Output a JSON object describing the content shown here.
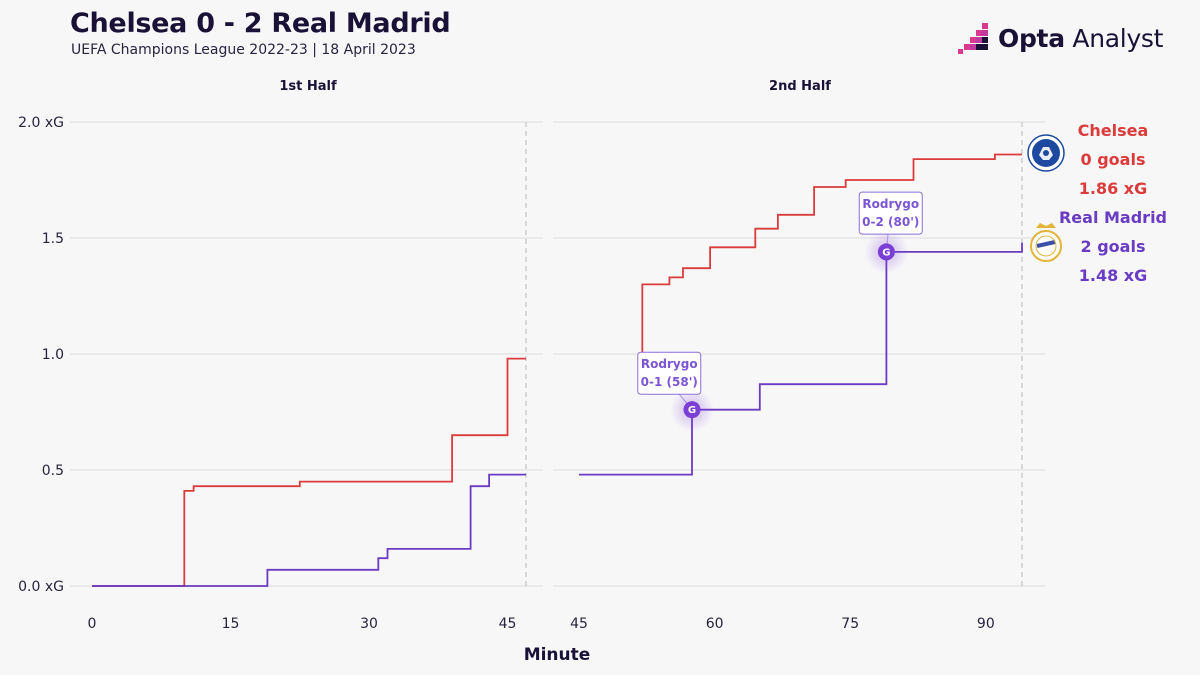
{
  "header": {
    "title": "Chelsea 0 - 2 Real Madrid",
    "subtitle": "UEFA Champions League 2022-23 | 18 April 2023",
    "brand_bold": "Opta",
    "brand_light": " Analyst"
  },
  "colors": {
    "chelsea": "#dc3b3b",
    "real_madrid": "#6a3bc3",
    "grid": "#dcdce0",
    "goal_marker": "#7b3fd6"
  },
  "teams": [
    {
      "name": "Chelsea",
      "goals": "0 goals",
      "xg": "1.86 xG",
      "color": "#dc3b3b",
      "badge": "chelsea-badge-icon"
    },
    {
      "name": "Real Madrid",
      "goals": "2 goals",
      "xg": "1.48 xG",
      "color": "#6a3bc3",
      "badge": "real-madrid-badge-icon"
    }
  ],
  "chart_data": {
    "type": "line",
    "step": true,
    "xlabel": "Minute",
    "ylabel": "",
    "ylim": [
      0,
      2.0
    ],
    "yticks": [
      {
        "v": 0,
        "label": "0.0 xG"
      },
      {
        "v": 0.5,
        "label": "0.5"
      },
      {
        "v": 1.0,
        "label": "1.0"
      },
      {
        "v": 1.5,
        "label": "1.5"
      },
      {
        "v": 2.0,
        "label": "2.0 xG"
      }
    ],
    "panels": [
      {
        "title": "1st Half",
        "xlim": [
          0,
          47
        ],
        "xticks": [
          0,
          15,
          30,
          45
        ],
        "end_marker": 47,
        "series": [
          {
            "name": "Chelsea",
            "color": "#dc3b3b",
            "points": [
              [
                0,
                0
              ],
              [
                10,
                0
              ],
              [
                10,
                0.41
              ],
              [
                11,
                0.41
              ],
              [
                11,
                0.43
              ],
              [
                22.5,
                0.43
              ],
              [
                22.5,
                0.45
              ],
              [
                39,
                0.45
              ],
              [
                39,
                0.65
              ],
              [
                45,
                0.65
              ],
              [
                45,
                0.98
              ],
              [
                47,
                0.98
              ]
            ]
          },
          {
            "name": "Real Madrid",
            "color": "#6a3bc3",
            "points": [
              [
                0,
                0
              ],
              [
                19,
                0
              ],
              [
                19,
                0.07
              ],
              [
                31,
                0.07
              ],
              [
                31,
                0.12
              ],
              [
                32,
                0.12
              ],
              [
                32,
                0.16
              ],
              [
                41,
                0.16
              ],
              [
                41,
                0.43
              ],
              [
                43,
                0.43
              ],
              [
                43,
                0.48
              ],
              [
                47,
                0.48
              ]
            ]
          }
        ]
      },
      {
        "title": "2nd Half",
        "xlim": [
          45,
          94
        ],
        "xticks": [
          45,
          60,
          75,
          90
        ],
        "end_marker": 94,
        "series": [
          {
            "name": "Chelsea",
            "color": "#dc3b3b",
            "points": [
              [
                52,
                0.98
              ],
              [
                52,
                1.3
              ],
              [
                55,
                1.3
              ],
              [
                55,
                1.33
              ],
              [
                56.5,
                1.33
              ],
              [
                56.5,
                1.37
              ],
              [
                59.5,
                1.37
              ],
              [
                59.5,
                1.46
              ],
              [
                64.5,
                1.46
              ],
              [
                64.5,
                1.54
              ],
              [
                67,
                1.54
              ],
              [
                67,
                1.6
              ],
              [
                71,
                1.6
              ],
              [
                71,
                1.72
              ],
              [
                74.5,
                1.72
              ],
              [
                74.5,
                1.75
              ],
              [
                82,
                1.75
              ],
              [
                82,
                1.84
              ],
              [
                91,
                1.84
              ],
              [
                91,
                1.86
              ],
              [
                94,
                1.86
              ]
            ]
          },
          {
            "name": "Real Madrid",
            "color": "#6a3bc3",
            "points": [
              [
                45,
                0.48
              ],
              [
                57.5,
                0.48
              ],
              [
                57.5,
                0.76
              ],
              [
                65,
                0.76
              ],
              [
                65,
                0.87
              ],
              [
                79,
                0.87
              ],
              [
                79,
                1.44
              ],
              [
                94,
                1.44
              ],
              [
                94,
                1.48
              ]
            ]
          }
        ],
        "goals": [
          {
            "minute": 57.5,
            "xg": 0.76,
            "marker": "G",
            "line1": "Rodrygo",
            "line2": "0-1 (58')",
            "label_minute": 51.5,
            "label_xg": 0.93
          },
          {
            "minute": 79,
            "xg": 1.44,
            "marker": "G",
            "line1": "Rodrygo",
            "line2": "0-2 (80')",
            "label_minute": 76,
            "label_xg": 1.62
          }
        ]
      }
    ]
  }
}
